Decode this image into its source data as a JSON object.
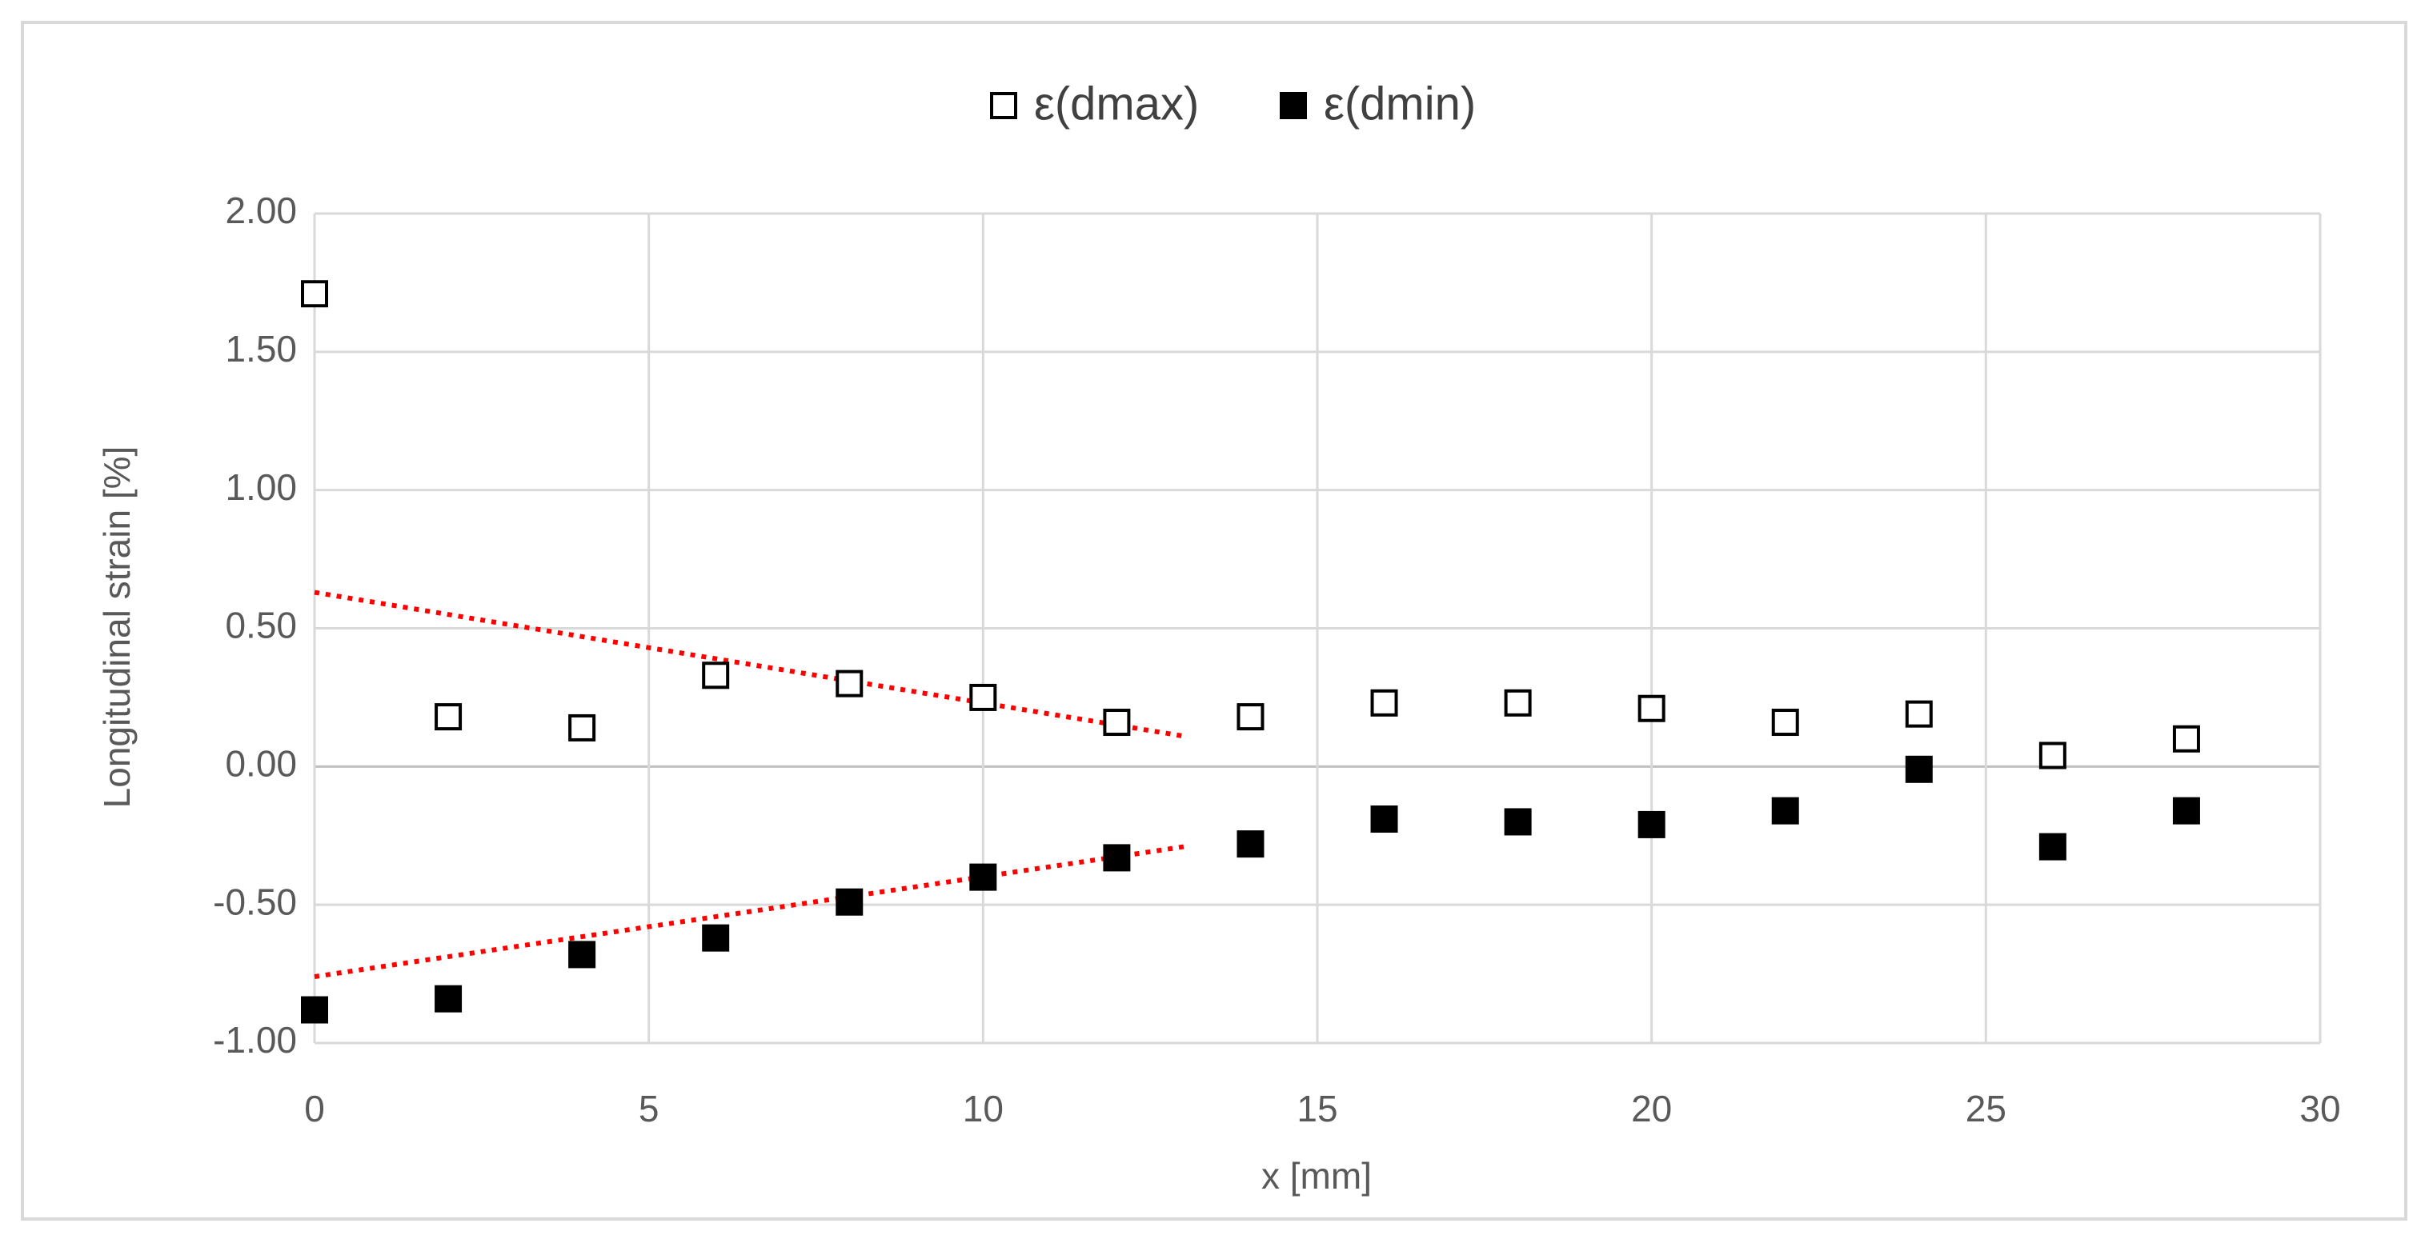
{
  "chart_data": {
    "type": "scatter",
    "x_label": "x [mm]",
    "y_label": "Longitudinal strain [%]",
    "x": [
      0,
      2,
      4,
      6,
      8,
      10,
      12,
      14,
      16,
      18,
      20,
      22,
      24,
      26,
      28
    ],
    "series": [
      {
        "name": "ε(dmax)",
        "color": "#000000",
        "filled": false,
        "values": [
          1.71,
          0.18,
          0.14,
          0.33,
          0.3,
          0.25,
          0.16,
          0.18,
          0.23,
          0.23,
          0.21,
          0.16,
          0.19,
          0.04,
          0.1
        ]
      },
      {
        "name": "ε(dmin)",
        "color": "#000000",
        "filled": true,
        "values": [
          -0.88,
          -0.84,
          -0.68,
          -0.62,
          -0.49,
          -0.4,
          -0.33,
          -0.28,
          -0.19,
          -0.2,
          -0.21,
          -0.16,
          -0.01,
          -0.29,
          -0.16
        ]
      }
    ],
    "trendlines": [
      {
        "color": "#ff0000",
        "x": [
          0,
          13
        ],
        "values": [
          0.63,
          0.11
        ]
      },
      {
        "color": "#ff0000",
        "x": [
          0,
          13
        ],
        "values": [
          -0.76,
          -0.29
        ]
      }
    ],
    "xlim": [
      0,
      30
    ],
    "xticks": [
      0,
      5,
      10,
      15,
      20,
      25,
      30
    ],
    "ylim": [
      -1,
      2
    ],
    "yticks": [
      {
        "value": -1,
        "label": "-1.00"
      },
      {
        "value": -0.5,
        "label": "-0.50"
      },
      {
        "value": 0,
        "label": "0.00"
      },
      {
        "value": 0.5,
        "label": "0.50"
      },
      {
        "value": 1,
        "label": "1.00"
      },
      {
        "value": 1.5,
        "label": "1.50"
      },
      {
        "value": 2,
        "label": "2.00"
      }
    ],
    "grid": true
  }
}
